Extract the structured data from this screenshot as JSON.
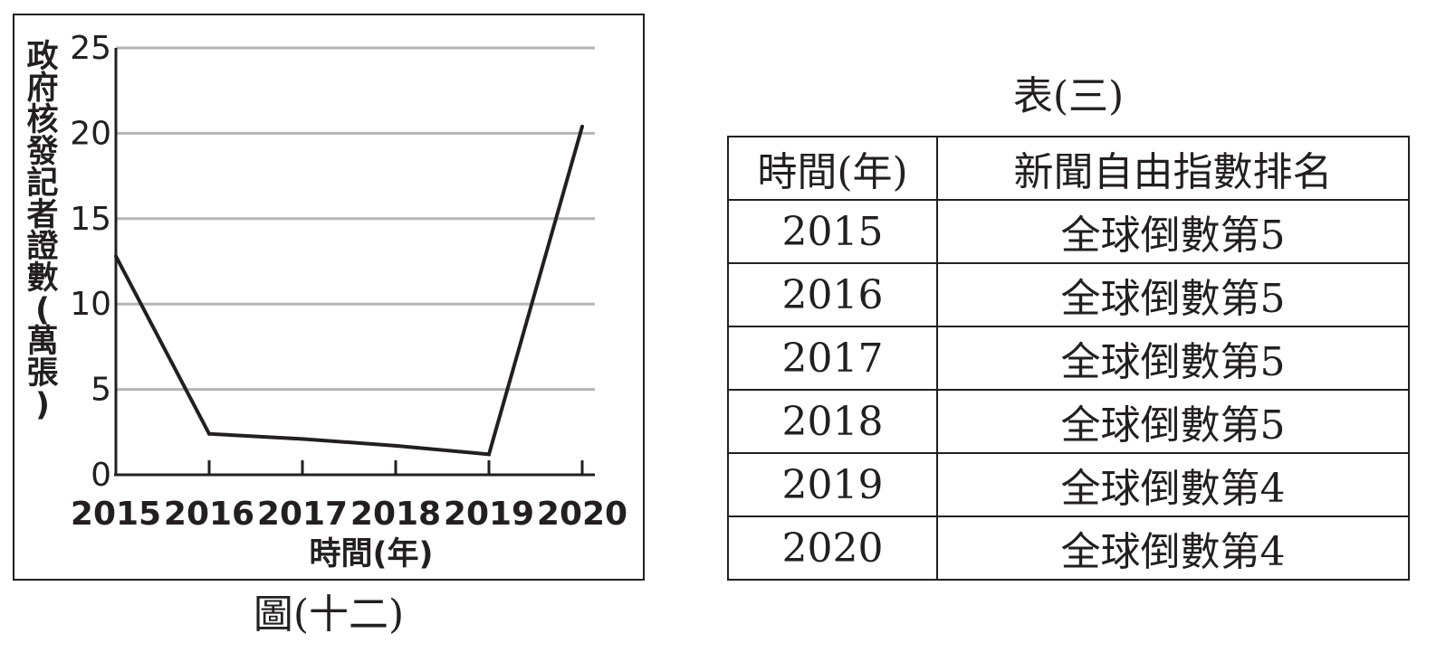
{
  "figure": {
    "caption": "圖(十二)"
  },
  "table": {
    "caption": "表(三)",
    "headers": [
      "時間(年)",
      "新聞自由指數排名"
    ],
    "rows": [
      [
        "2015",
        "全球倒數第5"
      ],
      [
        "2016",
        "全球倒數第5"
      ],
      [
        "2017",
        "全球倒數第5"
      ],
      [
        "2018",
        "全球倒數第5"
      ],
      [
        "2019",
        "全球倒數第4"
      ],
      [
        "2020",
        "全球倒數第4"
      ]
    ]
  },
  "chart_data": {
    "type": "line",
    "title": "",
    "xlabel": "時間(年)",
    "ylabel": "政府核發記者證數(萬張)",
    "x": [
      "2015",
      "2016",
      "2017",
      "2018",
      "2019",
      "2020"
    ],
    "series": [
      {
        "values": [
          12.8,
          2.4,
          2.1,
          1.7,
          1.2,
          20.4
        ]
      }
    ],
    "yticks": [
      "0",
      "5",
      "10",
      "15",
      "20",
      "25"
    ],
    "ylim": [
      0,
      25
    ],
    "grid": true,
    "colors": {
      "line": "#231f20",
      "grid": "#b5b5b5",
      "axis": "#231f20"
    }
  }
}
